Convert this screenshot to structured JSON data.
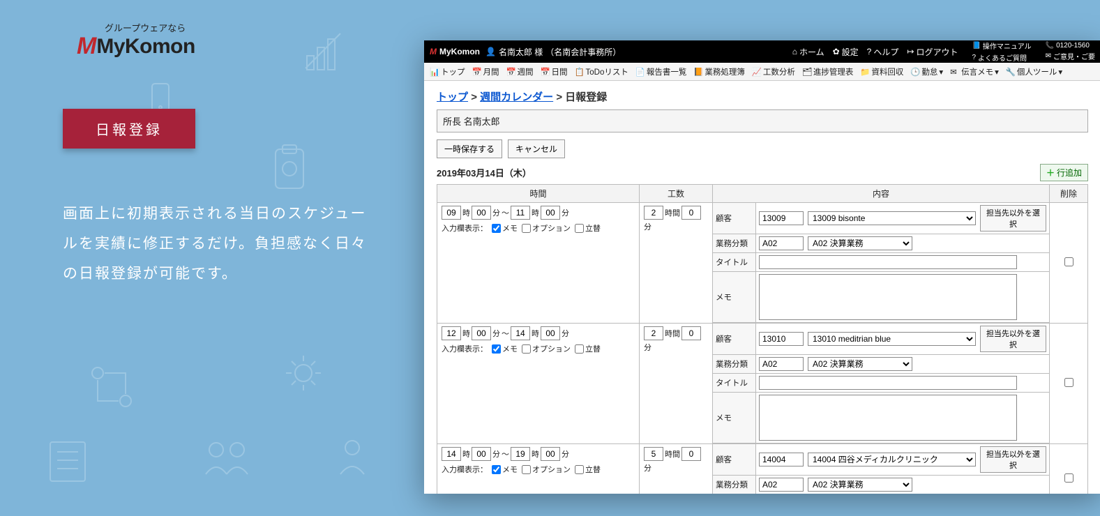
{
  "marketing": {
    "tagline": "グループウェアなら",
    "brand": "MyKomon",
    "badge": "日報登録",
    "description": "画面上に初期表示される当日のスケジュールを実績に修正するだけ。負担感なく日々の日報登録が可能です。"
  },
  "header": {
    "brand": "MyKomon",
    "user_name": "名南太郎 様",
    "user_org": "（名南会計事務所）",
    "nav": {
      "home": "ホーム",
      "settings": "設定",
      "help": "ヘルプ",
      "logout": "ログアウト"
    },
    "extras": {
      "manual": "操作マニュアル",
      "tel": "0120-1560",
      "faq": "よくあるご質問",
      "feedback": "ご意見・ご要"
    }
  },
  "tabs": {
    "top": "トップ",
    "month": "月間",
    "week": "週間",
    "day": "日間",
    "todo": "ToDoリスト",
    "report": "報告書一覧",
    "gyomu": "業務処理簿",
    "kosu": "工数分析",
    "progress": "進捗管理表",
    "collect": "資料回収",
    "kintai": "勤怠",
    "dengon": "伝言メモ",
    "kojin": "個人ツール"
  },
  "crumbs": {
    "top": "トップ",
    "weekly": "週間カレンダー",
    "current": "日報登録",
    "sep": ">"
  },
  "namebar": "所長  名南太郎",
  "buttons": {
    "tempsave": "一時保存する",
    "cancel": "キャンセル",
    "addrow": "行追加",
    "otherassignee": "担当先以外を選択"
  },
  "date": "2019年03月14日（木）",
  "table": {
    "headers": {
      "time": "時間",
      "kosu": "工数",
      "content": "内容",
      "del": "削除"
    },
    "time_labels": {
      "hour": "時",
      "min": "分",
      "tilde": "～",
      "dur_h": "時間",
      "dur_m": "分"
    },
    "disp": {
      "label": "入力欄表示：",
      "memo": "メモ",
      "option": "オプション",
      "tatekae": "立替"
    },
    "field_labels": {
      "customer": "顧客",
      "category": "業務分類",
      "title": "タイトル",
      "memo": "メモ"
    }
  },
  "rows": [
    {
      "start_h": "09",
      "start_m": "00",
      "end_h": "11",
      "end_m": "00",
      "dur_h": "2",
      "dur_m": "0",
      "cust_code": "13009",
      "cust_name": "13009 bisonte",
      "cat_code": "A02",
      "cat_name": "A02 決算業務",
      "title": "",
      "memo": ""
    },
    {
      "start_h": "12",
      "start_m": "00",
      "end_h": "14",
      "end_m": "00",
      "dur_h": "2",
      "dur_m": "0",
      "cust_code": "13010",
      "cust_name": "13010 meditrian blue",
      "cat_code": "A02",
      "cat_name": "A02 決算業務",
      "title": "",
      "memo": ""
    },
    {
      "start_h": "14",
      "start_m": "00",
      "end_h": "19",
      "end_m": "00",
      "dur_h": "5",
      "dur_m": "0",
      "cust_code": "14004",
      "cust_name": "14004 四谷メディカルクリニック",
      "cat_code": "A02",
      "cat_name": "A02 決算業務",
      "title": "",
      "memo": ""
    }
  ]
}
